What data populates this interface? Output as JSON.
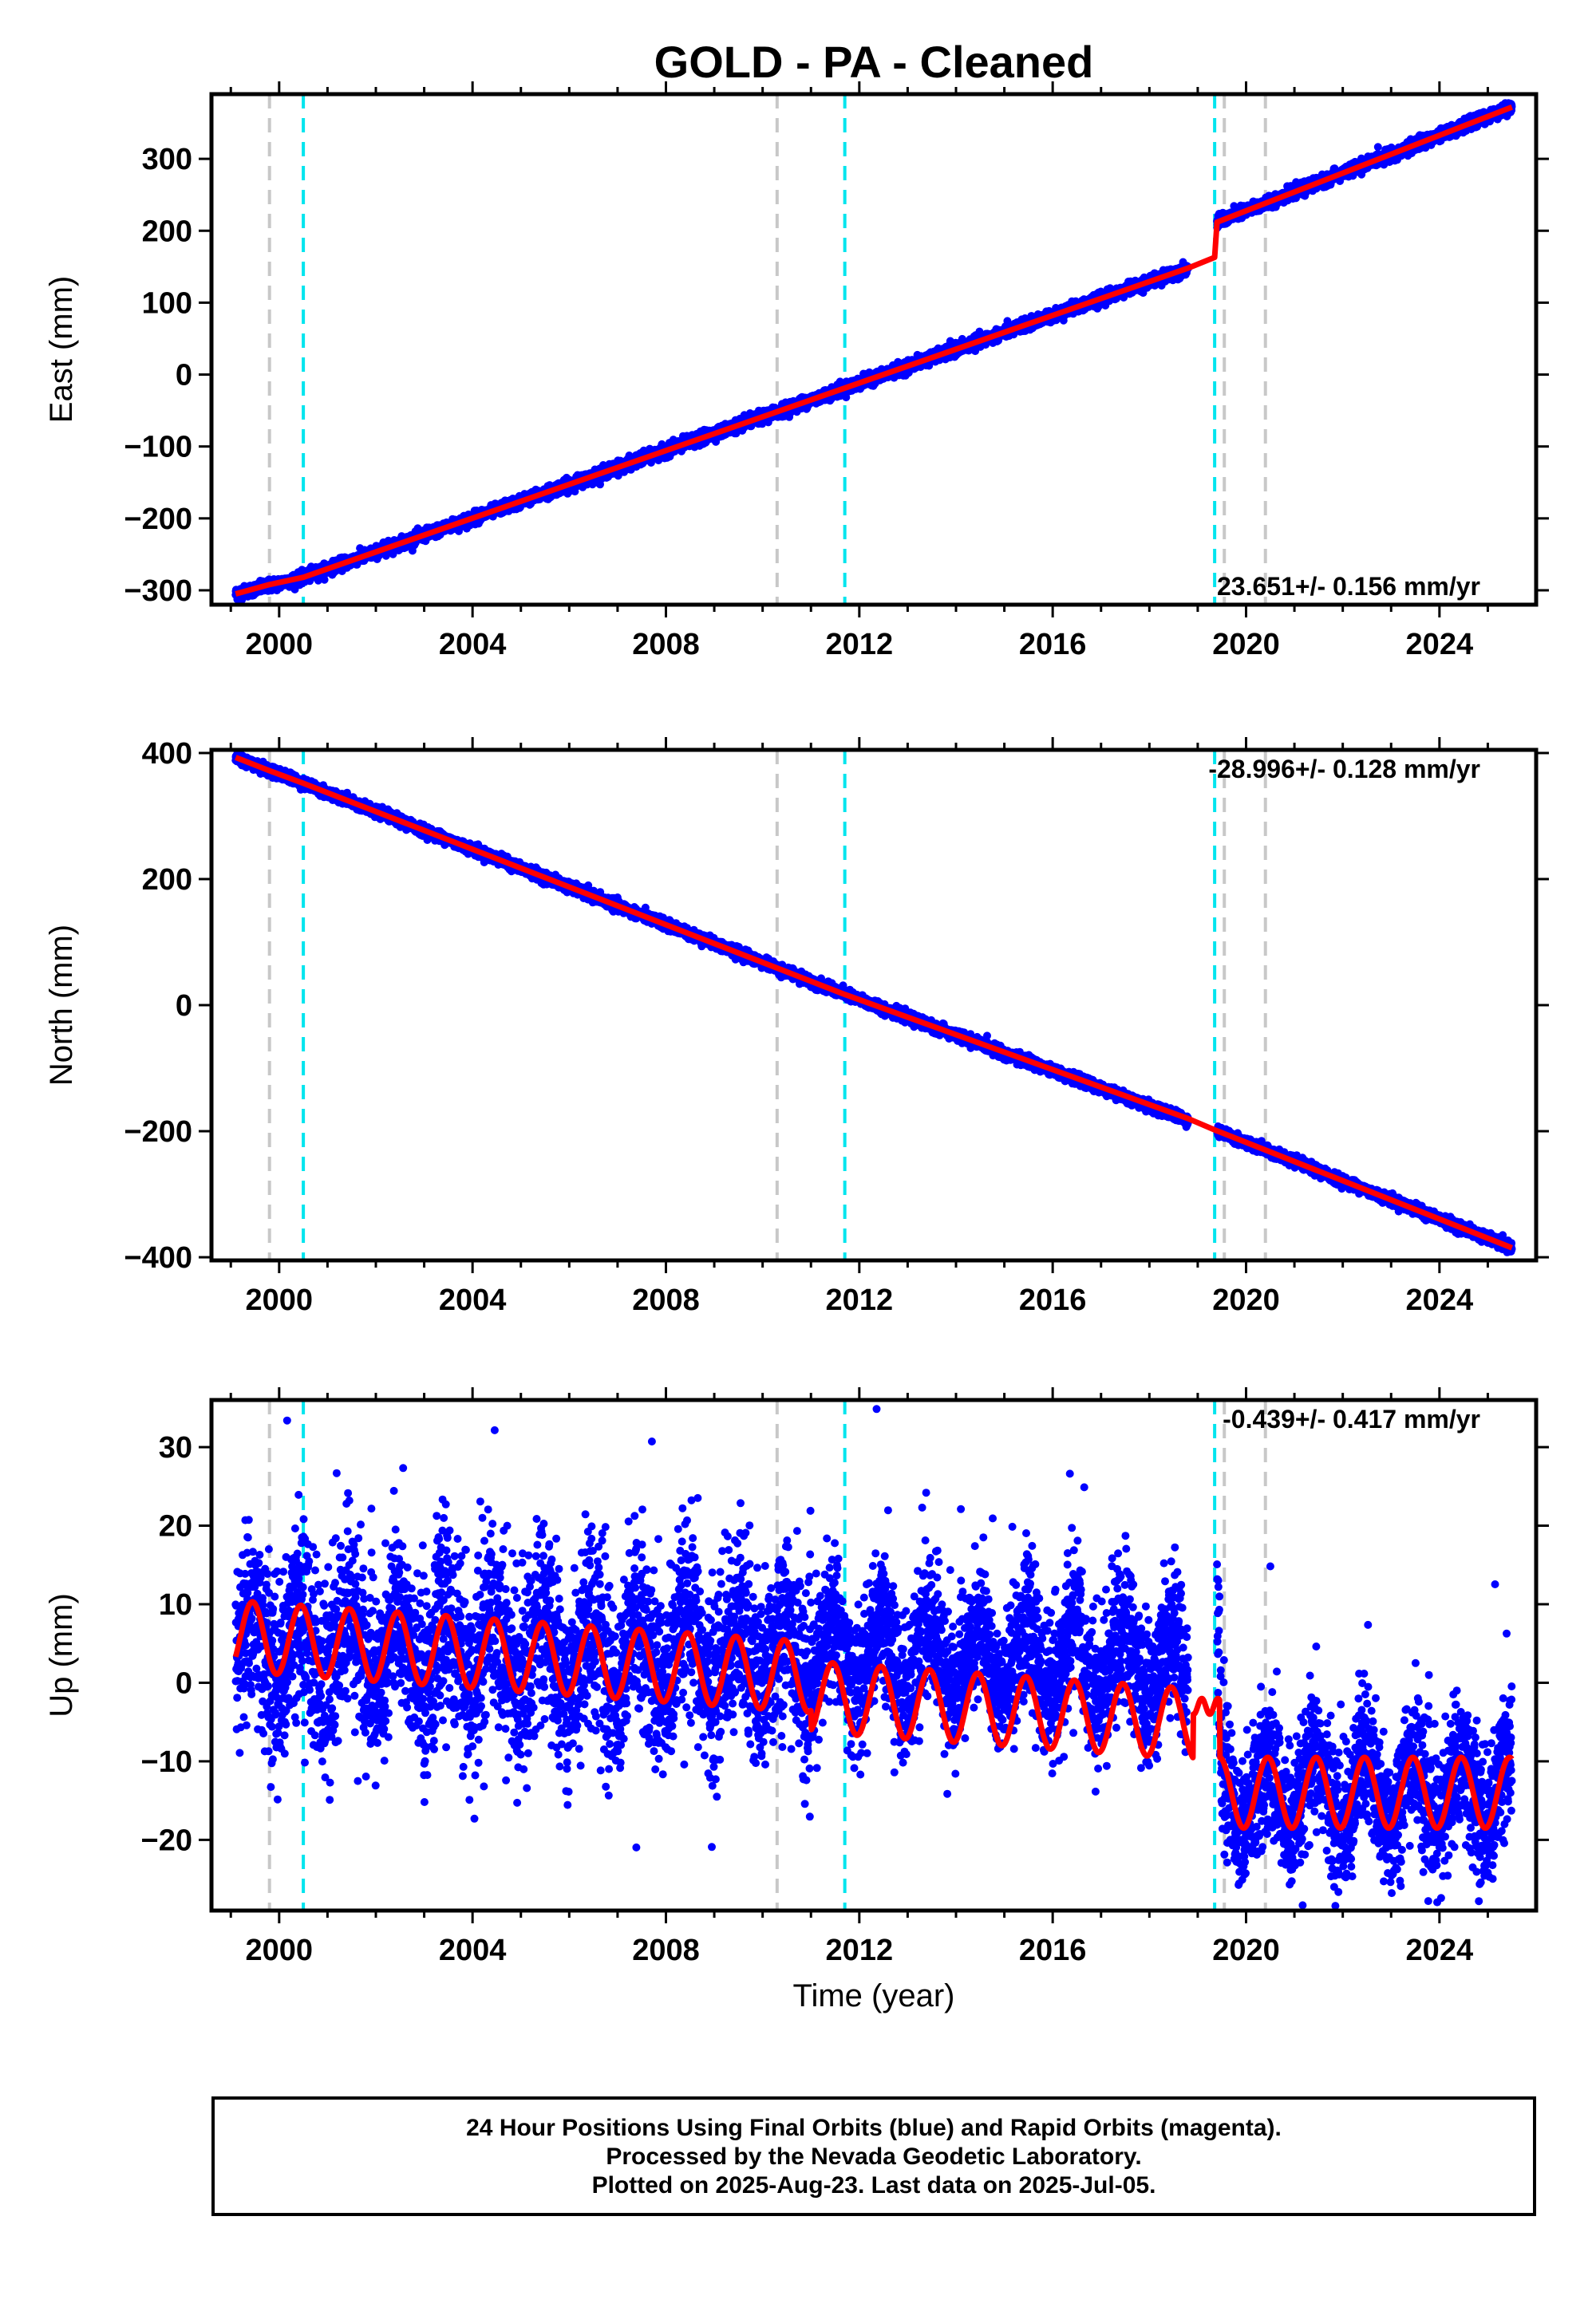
{
  "title": "GOLD  - PA - Cleaned",
  "footer": {
    "line1": "24 Hour Positions Using Final Orbits (blue) and Rapid Orbits (magenta).",
    "line2": "Processed by the Nevada Geodetic Laboratory.",
    "line3": "Plotted on 2025-Aug-23. Last data on 2025-Jul-05."
  },
  "colors": {
    "points": "#0000ff",
    "model": "#ff0000",
    "equipment_change": "#c8c8c8",
    "earthquake": "#00e5ee"
  },
  "events": {
    "gray_lines": [
      1999.8,
      2010.3,
      2019.55,
      2020.4
    ],
    "cyan_lines": [
      2000.5,
      2011.7,
      2019.35
    ]
  },
  "chart_data": [
    {
      "type": "scatter",
      "component": "East",
      "ylabel": "East (mm)",
      "xlabel": "",
      "xlim": [
        1998.6,
        2026.0
      ],
      "ylim": [
        -320,
        390
      ],
      "xticks": [
        2000,
        2004,
        2008,
        2012,
        2016,
        2020,
        2024
      ],
      "yticks": [
        -300,
        -200,
        -100,
        0,
        100,
        200,
        300
      ],
      "rate_label": "23.651+/- 0.156 mm/yr",
      "rate_position": "bottom-right",
      "series": [
        {
          "role": "observations",
          "x_start": 1999.1,
          "x_end": 2025.5,
          "gap": [
            2018.8,
            2019.4
          ],
          "trend": [
            [
              1999.1,
              -305
            ],
            [
              2000.5,
              -282
            ],
            [
              2018.8,
              148
            ],
            [
              2019.35,
              163
            ],
            [
              2019.4,
              212
            ],
            [
              2025.5,
              372
            ]
          ],
          "scatter_mm": 4
        },
        {
          "role": "model",
          "x": [
            1999.1,
            1999.8,
            2000.5,
            2018.8,
            2019.35,
            2019.4,
            2025.5
          ],
          "y": [
            -305,
            -292,
            -282,
            148,
            163,
            212,
            372
          ]
        }
      ]
    },
    {
      "type": "scatter",
      "component": "North",
      "ylabel": "North (mm)",
      "xlabel": "",
      "xlim": [
        1998.6,
        2026.0
      ],
      "ylim": [
        -405,
        405
      ],
      "xticks": [
        2000,
        2004,
        2008,
        2012,
        2016,
        2020,
        2024
      ],
      "yticks": [
        -400,
        -200,
        0,
        200,
        400
      ],
      "rate_label": "-28.996+/- 0.128 mm/yr",
      "rate_position": "top-right",
      "series": [
        {
          "role": "observations",
          "x_start": 1999.1,
          "x_end": 2025.5,
          "gap": [
            2018.8,
            2019.4
          ],
          "trend": [
            [
              1999.1,
              393
            ],
            [
              2000.5,
              352
            ],
            [
              2011.7,
              17
            ],
            [
              2019.35,
              -198
            ],
            [
              2025.5,
              -385
            ]
          ],
          "scatter_mm": 4
        },
        {
          "role": "model",
          "x": [
            1999.1,
            1999.8,
            2000.5,
            2011.7,
            2018.8,
            2019.35,
            2025.5
          ],
          "y": [
            393,
            372,
            352,
            17,
            -180,
            -198,
            -385
          ]
        }
      ]
    },
    {
      "type": "scatter",
      "component": "Up",
      "ylabel": "Up (mm)",
      "xlabel": "Time (year)",
      "xlim": [
        1998.6,
        2026.0
      ],
      "ylim": [
        -29,
        36
      ],
      "xticks": [
        2000,
        2004,
        2008,
        2012,
        2016,
        2020,
        2024
      ],
      "yticks": [
        -20,
        -10,
        0,
        10,
        20,
        30
      ],
      "rate_label": "-0.439+/- 0.417 mm/yr",
      "rate_position": "top-right",
      "series": [
        {
          "role": "observations",
          "x_start": 1999.1,
          "x_end": 2025.5,
          "gap": [
            2018.8,
            2019.4
          ],
          "mean_before": 4.5,
          "mean_after": -14.0,
          "step_epoch": 2019.45,
          "seasonal_amplitude_mm": 4.5,
          "scatter_mm": 4.5
        },
        {
          "role": "model",
          "x_start": 1999.1,
          "x_end": 2025.5,
          "mean_before": 6.0,
          "mean_after": -14.0,
          "drift_mm_per_yr": -0.439,
          "seasonal_amplitude_mm": 4.5,
          "step_epoch": 2019.45
        }
      ]
    }
  ]
}
